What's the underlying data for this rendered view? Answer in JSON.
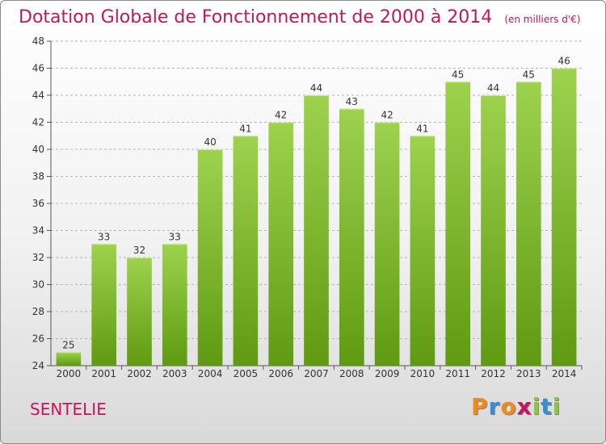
{
  "title": {
    "main": "Dotation Globale de Fonctionnement de 2000 à 2014",
    "sub": "(en milliers d'€)"
  },
  "commune": "SENTELIE",
  "logo": {
    "text": "Proxiti",
    "letters": [
      {
        "char": "P",
        "color": "#f08a1c"
      },
      {
        "char": "r",
        "color": "#3a8fd0"
      },
      {
        "char": "o",
        "color": "#f08a1c"
      },
      {
        "char": "x",
        "color": "#c4165c"
      },
      {
        "char": "i",
        "color": "#8cc63f"
      },
      {
        "char": "t",
        "color": "#3a8fd0"
      },
      {
        "char": "i",
        "color": "#8cc63f"
      }
    ]
  },
  "colors": {
    "title": "#c4165c",
    "bar_top": "#9ed24e",
    "bar_bottom": "#5f9a12",
    "grid": "#b5b5b5",
    "axis": "#555555"
  },
  "chart_data": {
    "type": "bar",
    "title": "Dotation Globale de Fonctionnement de 2000 à 2014",
    "subtitle": "(en milliers d'€)",
    "xlabel": "",
    "ylabel": "",
    "ylim": [
      24,
      48
    ],
    "yticks": [
      24,
      26,
      28,
      30,
      32,
      34,
      36,
      38,
      40,
      42,
      44,
      46,
      48
    ],
    "grid": "horizontal dashed",
    "categories": [
      "2000",
      "2001",
      "2002",
      "2003",
      "2004",
      "2005",
      "2006",
      "2007",
      "2008",
      "2009",
      "2010",
      "2011",
      "2012",
      "2013",
      "2014"
    ],
    "values": [
      25,
      33,
      32,
      33,
      40,
      41,
      42,
      44,
      43,
      42,
      41,
      45,
      44,
      45,
      46
    ],
    "data_labels": [
      "25",
      "33",
      "32",
      "33",
      "40",
      "41",
      "42",
      "44",
      "43",
      "42",
      "41",
      "45",
      "44",
      "45",
      "46"
    ]
  }
}
